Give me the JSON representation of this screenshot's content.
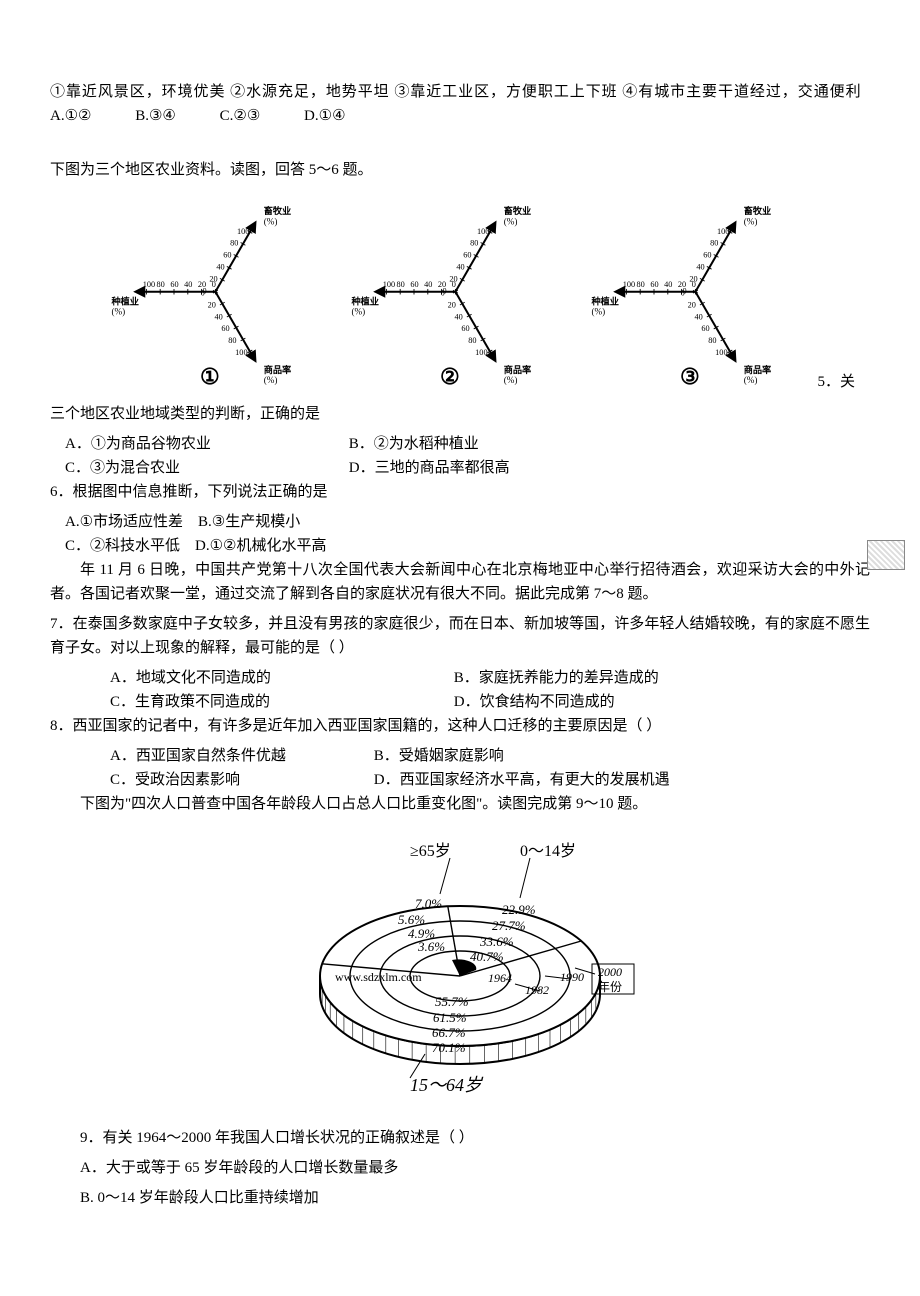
{
  "top": {
    "line1": "①靠近风景区，环境优美 ②水源充足，地势平坦 ③靠近工业区，方便职工上下班 ④有城市主要干道经过，交通便利",
    "opts": {
      "A": "A.①②",
      "B": "B.③④",
      "C": "C.②③",
      "D": "D.①④"
    }
  },
  "intro56": "下图为三个地区农业资料。读图，回答 5～6 题。",
  "triAxis": {
    "axes": [
      {
        "name": "畜牧业",
        "unit": "(%)"
      },
      {
        "name": "种植业",
        "unit": "(%)"
      },
      {
        "name": "商品率",
        "unit": "(%)"
      }
    ],
    "ticks": [
      0,
      20,
      40,
      60,
      80,
      100
    ],
    "charts": [
      {
        "label": "①"
      },
      {
        "label": "②"
      },
      {
        "label": "③"
      }
    ],
    "q5suffix": "5．关"
  },
  "q5": {
    "stem": "三个地区农业地域类型的判断，正确的是",
    "opts": {
      "A": "A．①为商品谷物农业",
      "B": "B．②为水稻种植业",
      "C": "C．③为混合农业",
      "D": "D．三地的商品率都很高"
    }
  },
  "q6": {
    "stem": "6．根据图中信息推断，下列说法正确的是",
    "opts": {
      "A": "A.①市场适应性差",
      "B": "B.③生产规模小",
      "C": "C．②科技水平低",
      "D": "D.①②机械化水平高"
    }
  },
  "intro78": {
    "p1": "年 11 月 6 日晚，中国共产党第十八次全国代表大会新闻中心在北京梅地亚中心举行招待酒会，欢迎采访大会的中外记者。各国记者欢聚一堂，通过交流了解到各自的家庭状况有很大不同。据此完成第 7～8 题。"
  },
  "q7": {
    "stem": "7．在泰国多数家庭中子女较多，并且没有男孩的家庭很少，而在日本、新加坡等国，许多年轻人结婚较晚，有的家庭不愿生育子女。对以上现象的解释，最可能的是（     ）",
    "opts": {
      "A": "A．地域文化不同造成的",
      "B": "B．家庭抚养能力的差异造成的",
      "C": "C．生育政策不同造成的",
      "D": "D．饮食结构不同造成的"
    }
  },
  "q8": {
    "stem": "8．西亚国家的记者中，有许多是近年加入西亚国家国籍的，这种人口迁移的主要原因是（     ）",
    "opts": {
      "A": "A．西亚国家自然条件优越",
      "B": "B．受婚姻家庭影响",
      "C": "C．受政治因素影响",
      "D": "D．西亚国家经济水平高，有更大的发展机遇"
    }
  },
  "intro910": "下图为\"四次人口普查中国各年龄段人口占总人口比重变化图\"。读图完成第 9～10 题。",
  "census": {
    "groups": {
      "top": "≥65岁",
      "right": "0～14岁",
      "bottom": "15～64岁"
    },
    "years": [
      "1964",
      "1982",
      "1990",
      "2000"
    ],
    "yearLabel": "年份",
    "url": "www.sdzxlm.com",
    "rings": [
      {
        "year": "1964",
        "ge65": "3.6%",
        "u14": "40.7%",
        "mid": "55.7%"
      },
      {
        "year": "1982",
        "ge65": "4.9%",
        "u14": "33.6%",
        "mid": "61.5%"
      },
      {
        "year": "1990",
        "ge65": "5.6%",
        "u14": "27.7%",
        "mid": "66.7%"
      },
      {
        "year": "2000",
        "ge65": "7.0%",
        "u14": "22.9%",
        "mid": "70.1%"
      }
    ]
  },
  "q9": {
    "stem": "9．有关 1964～2000 年我国人口增长状况的正确叙述是（     ）",
    "opts": {
      "A": "A．大于或等于 65 岁年龄段的人口增长数量最多",
      "B": "B. 0～14 岁年龄段人口比重持续增加"
    }
  },
  "style": {
    "ink": "#000000",
    "bg": "#ffffff",
    "diagramStroke": "#000000",
    "diagramStrokeWidth": 2.2,
    "thinStrokeWidth": 1
  }
}
